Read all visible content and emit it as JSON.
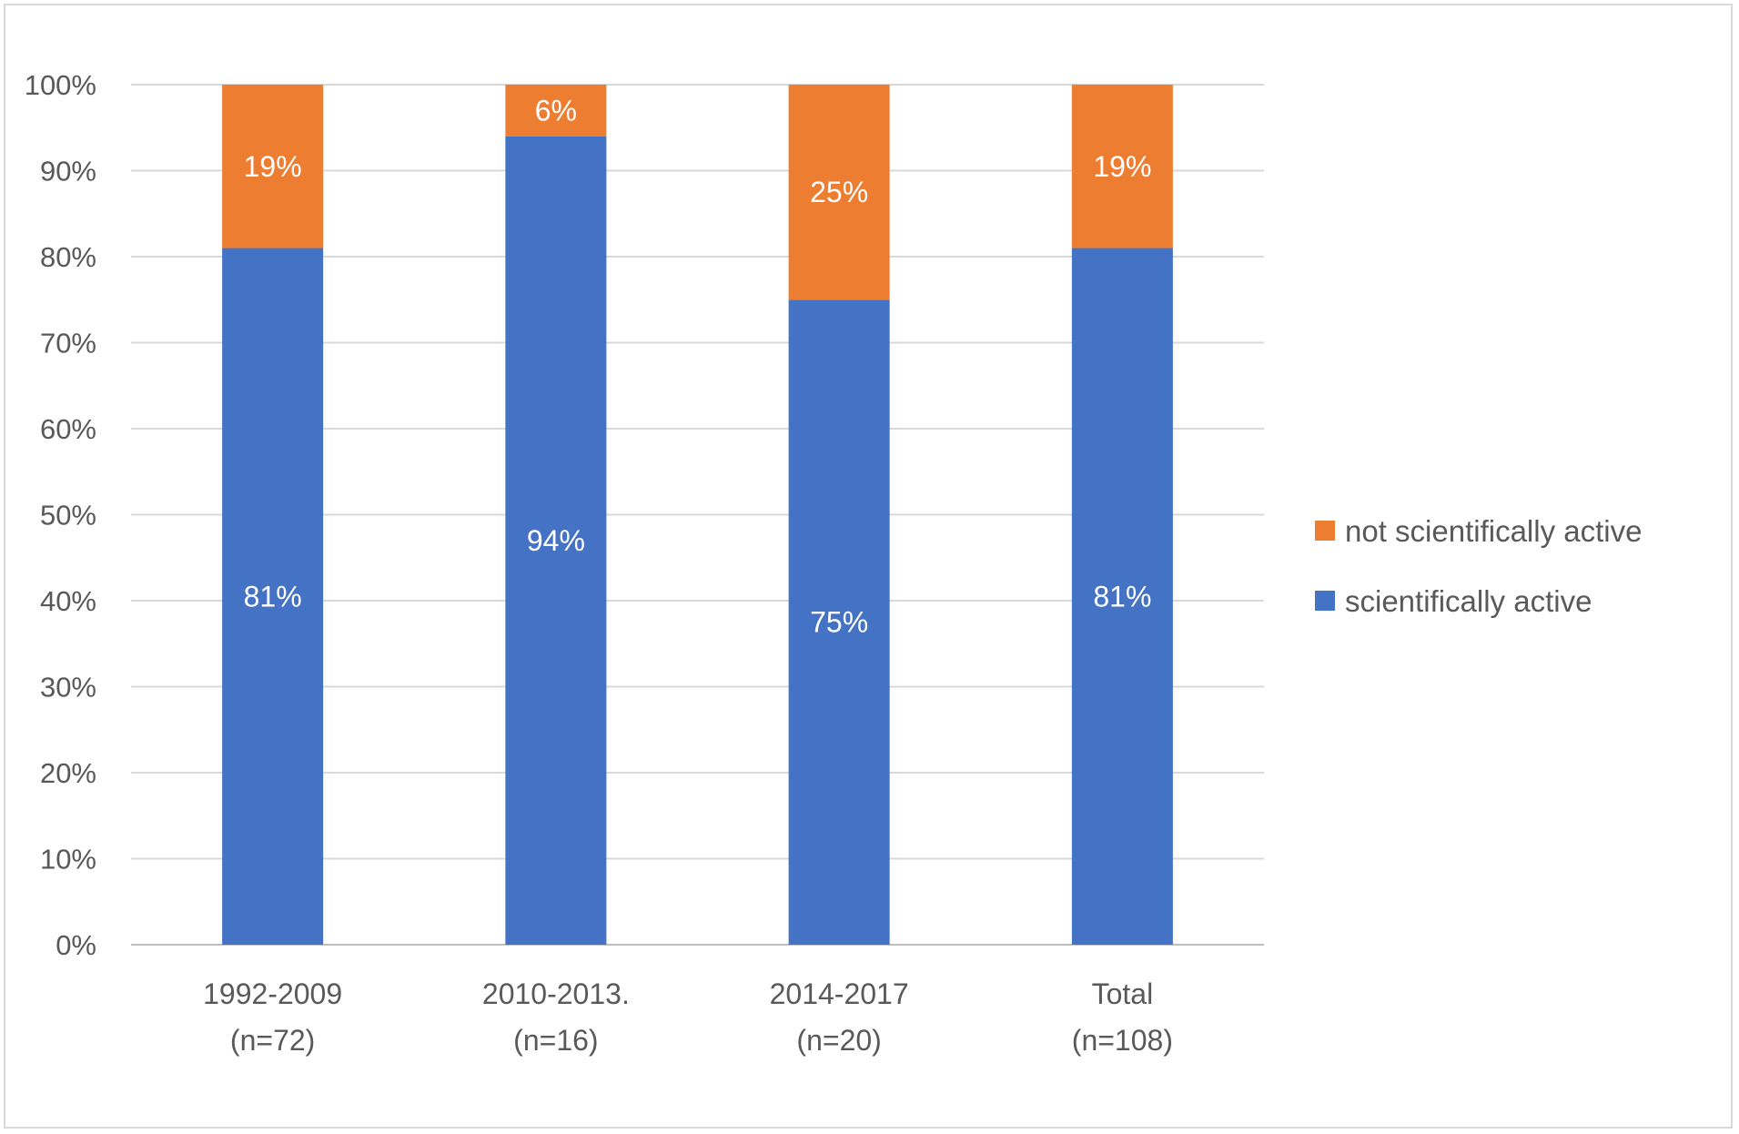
{
  "chart_data": {
    "type": "bar",
    "stacked": true,
    "categories": [
      [
        "1992-2009",
        "(n=72)"
      ],
      [
        "2010-2013.",
        "(n=16)"
      ],
      [
        "2014-2017",
        "(n=20)"
      ],
      [
        "Total",
        "(n=108)"
      ]
    ],
    "series": [
      {
        "name": "scientifically active",
        "values": [
          81,
          94,
          75,
          81
        ],
        "labels": [
          "81%",
          "94%",
          "75%",
          "81%"
        ],
        "color": "#4472C4"
      },
      {
        "name": "not scientifically active",
        "values": [
          19,
          6,
          25,
          19
        ],
        "labels": [
          "19%",
          "6%",
          "25%",
          "19%"
        ],
        "color": "#ED7D31"
      }
    ],
    "yticks": [
      "0%",
      "10%",
      "20%",
      "30%",
      "40%",
      "50%",
      "60%",
      "70%",
      "80%",
      "90%",
      "100%"
    ],
    "ylim": [
      0,
      100
    ],
    "grid": true,
    "legend": {
      "placement": "right",
      "order": [
        "not scientifically active",
        "scientifically active"
      ]
    }
  }
}
